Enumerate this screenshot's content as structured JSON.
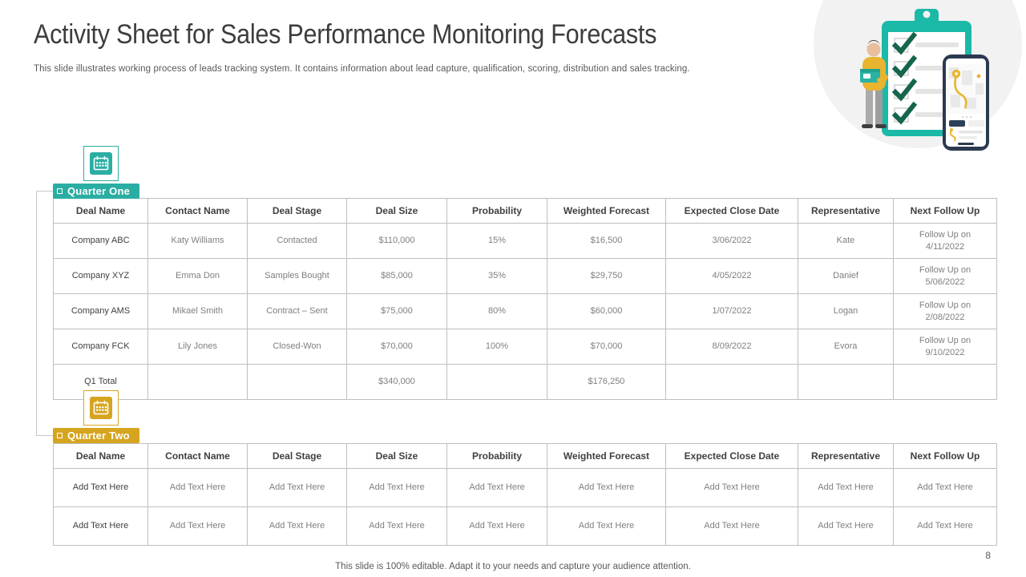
{
  "slide": {
    "title": "Activity Sheet for Sales Performance Monitoring Forecasts",
    "subtitle": "This slide illustrates working process of leads tracking system. It contains information about lead capture, qualification, scoring, distribution and sales tracking.",
    "footer": "This slide is 100% editable. Adapt it to your  needs and capture your audience attention.",
    "page_number": "8"
  },
  "colors": {
    "teal_accent": "#2aaea3",
    "gold_accent": "#d6a51f",
    "table_border": "#bfbfbf",
    "header_text": "#404040",
    "body_text": "#7f7f7f"
  },
  "icons": {
    "quarter_marker": "calendar-icon",
    "illustration": [
      "clipboard-icon",
      "checkmark-icon",
      "person-figure",
      "phone-map-icon"
    ]
  },
  "quarters": [
    {
      "label": "Quarter One",
      "accent_color": "#2aaea3",
      "table": {
        "headers": [
          "Deal Name",
          "Contact Name",
          "Deal Stage",
          "Deal Size",
          "Probability",
          "Weighted Forecast",
          "Expected Close Date",
          "Representative",
          "Next Follow Up"
        ],
        "rows": [
          [
            "Company ABC",
            "Katy Williams",
            "Contacted",
            "$110,000",
            "15%",
            "$16,500",
            "3/06/2022",
            "Kate",
            "Follow Up on 4/11/2022"
          ],
          [
            "Company XYZ",
            "Emma Don",
            "Samples Bought",
            "$85,000",
            "35%",
            "$29,750",
            "4/05/2022",
            "Danief",
            "Follow Up on 5/06/2022"
          ],
          [
            "Company AMS",
            "Mikael Smith",
            "Contract – Sent",
            "$75,000",
            "80%",
            "$60,000",
            "1/07/2022",
            "Logan",
            "Follow Up on 2/08/2022"
          ],
          [
            "Company FCK",
            "Lily Jones",
            "Closed-Won",
            "$70,000",
            "100%",
            "$70,000",
            "8/09/2022",
            "Evora",
            "Follow Up on 9/10/2022"
          ],
          [
            "Q1 Total",
            "",
            "",
            "$340,000",
            "",
            "$176,250",
            "",
            "",
            ""
          ]
        ]
      }
    },
    {
      "label": "Quarter Two",
      "accent_color": "#d6a51f",
      "table": {
        "headers": [
          "Deal Name",
          "Contact Name",
          "Deal Stage",
          "Deal Size",
          "Probability",
          "Weighted Forecast",
          "Expected Close Date",
          "Representative",
          "Next Follow Up"
        ],
        "rows": [
          [
            "Add Text Here",
            "Add Text Here",
            "Add Text Here",
            "Add Text Here",
            "Add Text Here",
            "Add Text Here",
            "Add Text Here",
            "Add Text Here",
            "Add Text Here"
          ],
          [
            "Add Text Here",
            "Add Text Here",
            "Add Text Here",
            "Add Text Here",
            "Add Text Here",
            "Add Text Here",
            "Add Text Here",
            "Add Text Here",
            "Add Text Here"
          ]
        ]
      }
    }
  ]
}
